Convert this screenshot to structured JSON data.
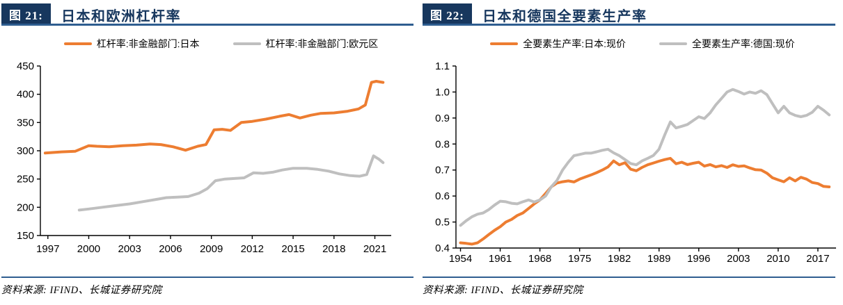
{
  "panels": [
    {
      "fig_label": "图 21:",
      "title": "日本和欧洲杠杆率",
      "legend": [
        {
          "label": "杠杆率:非金融部门:日本",
          "color": "#ED7D31"
        },
        {
          "label": "杠杆率:非金融部门:欧元区",
          "color": "#BFBFBF"
        }
      ],
      "source": "资料来源: IFIND、长城证券研究院",
      "chart_data": {
        "type": "line",
        "title": "日本和欧洲杠杆率",
        "xlabel": "",
        "ylabel": "",
        "xlim": [
          1996.45,
          2022.2
        ],
        "ylim": [
          150,
          450
        ],
        "yticks": [
          150,
          200,
          250,
          300,
          350,
          400,
          450
        ],
        "xticks": [
          1997,
          2000,
          2003,
          2006,
          2009,
          2012,
          2015,
          2018,
          2021
        ],
        "grid": false,
        "legend_position": "top",
        "series": [
          {
            "name": "杠杆率:非金融部门:日本",
            "color": "#ED7D31",
            "x": [
              1996.8,
              1998,
              1999,
              2000,
              2000.6,
              2001.5,
              2002.5,
              2003.5,
              2004.5,
              2005.3,
              2006.2,
              2007.1,
              2008,
              2008.6,
              2009.2,
              2009.8,
              2010.4,
              2011.2,
              2012,
              2013,
              2014,
              2014.7,
              2015.5,
              2016.3,
              2017,
              2018,
              2019,
              2019.8,
              2020.3,
              2020.75,
              2021.1,
              2021.6
            ],
            "y": [
              296,
              298,
              299,
              309,
              308,
              307,
              309,
              310,
              312,
              311,
              307,
              301,
              308,
              311,
              337,
              338,
              336,
              350,
              352,
              356,
              361,
              364,
              358,
              363,
              366,
              367,
              370,
              374,
              381,
              421,
              423,
              421
            ]
          },
          {
            "name": "杠杆率:非金融部门:欧元区",
            "color": "#BFBFBF",
            "x": [
              1999.3,
              2000,
              2001,
              2002,
              2003,
              2004,
              2005,
              2005.7,
              2006.5,
              2007.3,
              2008.1,
              2008.7,
              2009.3,
              2010,
              2010.7,
              2011.4,
              2012.1,
              2012.8,
              2013.5,
              2014.2,
              2015,
              2016,
              2016.8,
              2017.6,
              2018.4,
              2019.2,
              2019.9,
              2020.4,
              2020.9,
              2021.3,
              2021.6
            ],
            "y": [
              195,
              197,
              200,
              203,
              206,
              210,
              214,
              217,
              218,
              219,
              225,
              233,
              247,
              250,
              251,
              252,
              261,
              260,
              262,
              266,
              269,
              269,
              267,
              264,
              259,
              256,
              255,
              258,
              291,
              285,
              279
            ]
          }
        ]
      }
    },
    {
      "fig_label": "图 22:",
      "title": "日本和德国全要素生产率",
      "legend": [
        {
          "label": "全要素生产率:日本:现价",
          "color": "#ED7D31"
        },
        {
          "label": "全要素生产率:德国:现价",
          "color": "#BFBFBF"
        }
      ],
      "source": "资料来源: IFIND、长城证券研究院",
      "chart_data": {
        "type": "line",
        "title": "日本和德国全要素生产率",
        "xlabel": "",
        "ylabel": "",
        "xlim": [
          1953.2,
          2020.2
        ],
        "ylim": [
          0.4,
          1.1
        ],
        "yticks": [
          0.4,
          0.5,
          0.6,
          0.7,
          0.8,
          0.9,
          1.0,
          1.1
        ],
        "xticks": [
          1954,
          1961,
          1968,
          1975,
          1982,
          1989,
          1996,
          2003,
          2010,
          2017
        ],
        "grid": false,
        "legend_position": "top",
        "series": [
          {
            "name": "全要素生产率:日本:现价",
            "color": "#ED7D31",
            "x": [
              1954,
              1955,
              1956,
              1957,
              1958,
              1959,
              1960,
              1961,
              1962,
              1963,
              1964,
              1965,
              1966,
              1967,
              1968,
              1969,
              1970,
              1971,
              1972,
              1973,
              1974,
              1975,
              1976,
              1977,
              1978,
              1979,
              1980,
              1981,
              1982,
              1983,
              1984,
              1985,
              1986,
              1987,
              1988,
              1989,
              1990,
              1991,
              1992,
              1993,
              1994,
              1995,
              1996,
              1997,
              1998,
              1999,
              2000,
              2001,
              2002,
              2003,
              2004,
              2005,
              2006,
              2007,
              2008,
              2009,
              2010,
              2011,
              2012,
              2013,
              2014,
              2015,
              2016,
              2017,
              2018,
              2019
            ],
            "y": [
              0.42,
              0.418,
              0.415,
              0.42,
              0.435,
              0.452,
              0.468,
              0.482,
              0.5,
              0.51,
              0.525,
              0.535,
              0.552,
              0.57,
              0.585,
              0.61,
              0.635,
              0.65,
              0.655,
              0.658,
              0.654,
              0.665,
              0.673,
              0.681,
              0.69,
              0.7,
              0.712,
              0.735,
              0.72,
              0.728,
              0.703,
              0.697,
              0.71,
              0.72,
              0.727,
              0.734,
              0.74,
              0.745,
              0.724,
              0.73,
              0.721,
              0.726,
              0.73,
              0.715,
              0.721,
              0.712,
              0.717,
              0.71,
              0.72,
              0.714,
              0.716,
              0.708,
              0.701,
              0.7,
              0.688,
              0.67,
              0.662,
              0.655,
              0.67,
              0.658,
              0.672,
              0.665,
              0.652,
              0.648,
              0.637,
              0.635
            ]
          },
          {
            "name": "全要素生产率:德国:现价",
            "color": "#BFBFBF",
            "x": [
              1954,
              1955,
              1956,
              1957,
              1958,
              1959,
              1960,
              1961,
              1962,
              1963,
              1964,
              1965,
              1966,
              1967,
              1968,
              1969,
              1970,
              1971,
              1972,
              1973,
              1974,
              1975,
              1976,
              1977,
              1978,
              1979,
              1980,
              1981,
              1982,
              1983,
              1984,
              1985,
              1986,
              1987,
              1988,
              1989,
              1990,
              1991,
              1992,
              1993,
              1994,
              1995,
              1996,
              1997,
              1998,
              1999,
              2000,
              2001,
              2002,
              2003,
              2004,
              2005,
              2006,
              2007,
              2008,
              2009,
              2010,
              2011,
              2012,
              2013,
              2014,
              2015,
              2016,
              2017,
              2018,
              2019
            ],
            "y": [
              0.487,
              0.505,
              0.52,
              0.53,
              0.535,
              0.548,
              0.565,
              0.58,
              0.578,
              0.572,
              0.57,
              0.578,
              0.585,
              0.577,
              0.585,
              0.6,
              0.635,
              0.66,
              0.7,
              0.73,
              0.755,
              0.76,
              0.765,
              0.765,
              0.77,
              0.776,
              0.78,
              0.766,
              0.755,
              0.74,
              0.725,
              0.72,
              0.735,
              0.745,
              0.756,
              0.78,
              0.835,
              0.885,
              0.862,
              0.868,
              0.875,
              0.89,
              0.905,
              0.898,
              0.92,
              0.95,
              0.975,
              1.0,
              1.01,
              1.002,
              0.992,
              1.0,
              0.995,
              1.005,
              0.99,
              0.955,
              0.92,
              0.945,
              0.92,
              0.91,
              0.905,
              0.91,
              0.922,
              0.945,
              0.93,
              0.912
            ]
          }
        ]
      }
    }
  ],
  "style_colors": {
    "header_navy": "#17375E",
    "rule_blue": "#2E5D90",
    "series_orange": "#ED7D31",
    "series_gray": "#BFBFBF"
  }
}
